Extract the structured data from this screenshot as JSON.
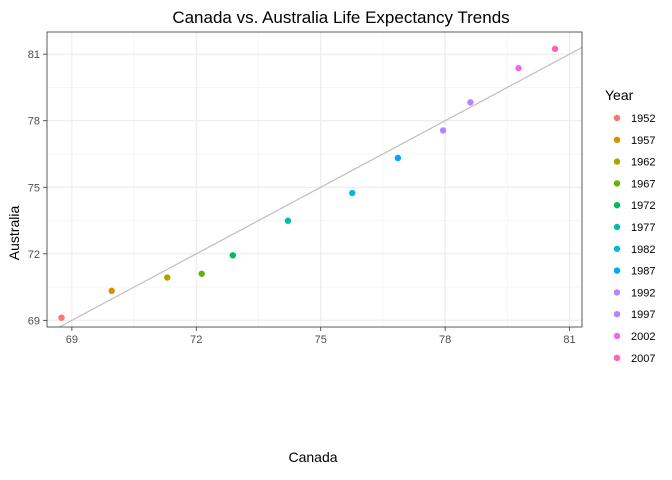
{
  "chart_data": {
    "type": "scatter",
    "title": "Canada vs. Australia Life Expectancy Trends",
    "xlabel": "Canada",
    "ylabel": "Australia",
    "xlim": [
      68.4,
      81.3
    ],
    "ylim": [
      68.7,
      82.0
    ],
    "x_ticks": [
      69,
      72,
      75,
      78,
      81
    ],
    "y_ticks": [
      69,
      72,
      75,
      78,
      81
    ],
    "x_tick_labels": [
      "69",
      "72",
      "75",
      "78",
      "81"
    ],
    "y_tick_labels": [
      "69",
      "72",
      "75",
      "78",
      "81"
    ],
    "grid": true,
    "legend_title": "Year",
    "legend_position": "right",
    "reference_line": {
      "type": "identity",
      "slope": 1,
      "intercept": 0,
      "color": "#bebebe"
    },
    "points": [
      {
        "year": "1952",
        "x": 68.75,
        "y": 69.12,
        "color": "#F8766D"
      },
      {
        "year": "1957",
        "x": 69.96,
        "y": 70.33,
        "color": "#DB8E00"
      },
      {
        "year": "1962",
        "x": 71.3,
        "y": 70.93,
        "color": "#AEA200"
      },
      {
        "year": "1967",
        "x": 72.13,
        "y": 71.1,
        "color": "#64B200"
      },
      {
        "year": "1972",
        "x": 72.88,
        "y": 71.93,
        "color": "#00BD5C"
      },
      {
        "year": "1977",
        "x": 74.21,
        "y": 73.49,
        "color": "#00C1A7"
      },
      {
        "year": "1982",
        "x": 75.76,
        "y": 74.74,
        "color": "#00BADE"
      },
      {
        "year": "1987",
        "x": 76.86,
        "y": 76.32,
        "color": "#00A6FF"
      },
      {
        "year": "1992",
        "x": 77.95,
        "y": 77.56,
        "color": "#B385FF"
      },
      {
        "year": "1997",
        "x": 78.61,
        "y": 78.83,
        "color": "#B385FF"
      },
      {
        "year": "2002",
        "x": 79.77,
        "y": 80.37,
        "color": "#EF67EB"
      },
      {
        "year": "2007",
        "x": 80.65,
        "y": 81.24,
        "color": "#FF63B6"
      }
    ]
  }
}
